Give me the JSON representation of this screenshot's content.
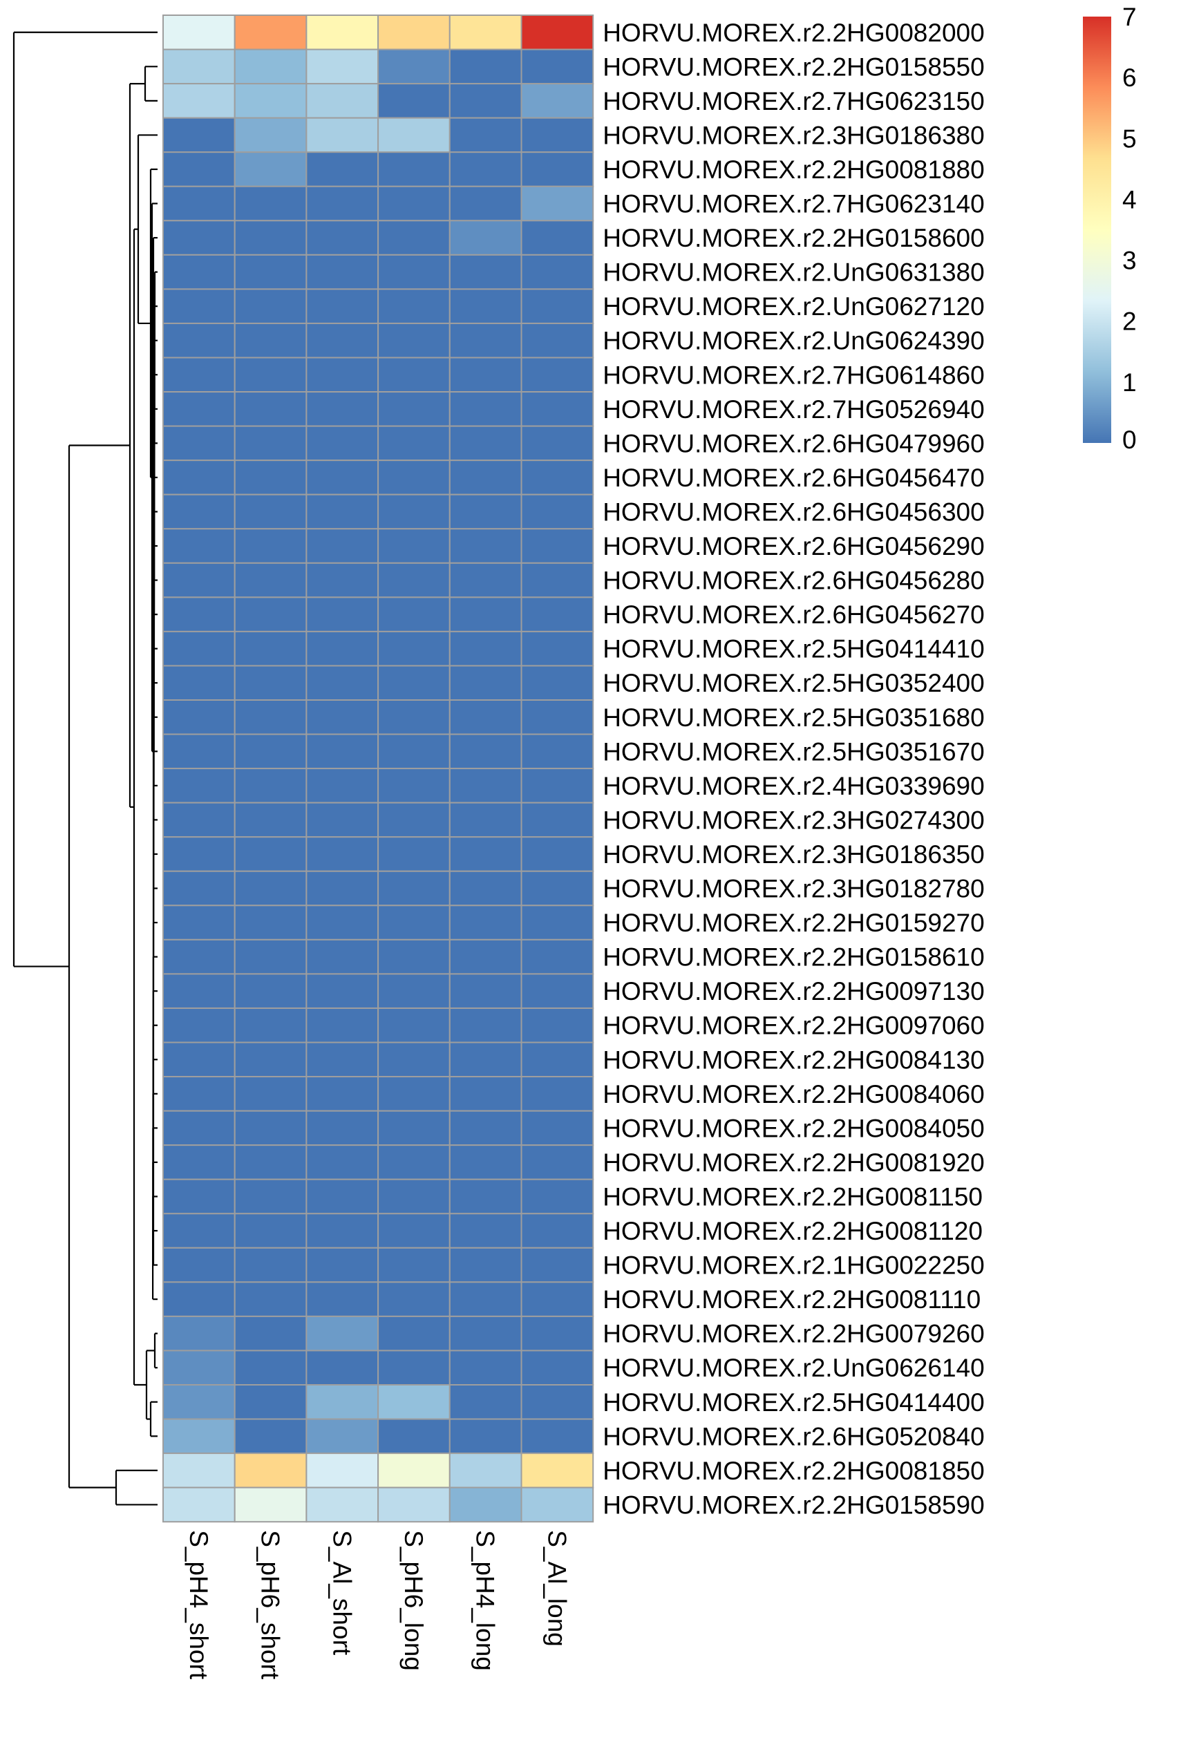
{
  "chart_data": {
    "type": "heatmap",
    "columns": [
      "S_pH4_short",
      "S_pH6_short",
      "S_Al_short",
      "S_pH6_long",
      "S_pH4_long",
      "S_Al_long"
    ],
    "rows": [
      "HORVU.MOREX.r2.2HG0082000",
      "HORVU.MOREX.r2.2HG0158550",
      "HORVU.MOREX.r2.7HG0623150",
      "HORVU.MOREX.r2.3HG0186380",
      "HORVU.MOREX.r2.2HG0081880",
      "HORVU.MOREX.r2.7HG0623140",
      "HORVU.MOREX.r2.2HG0158600",
      "HORVU.MOREX.r2.UnG0631380",
      "HORVU.MOREX.r2.UnG0627120",
      "HORVU.MOREX.r2.UnG0624390",
      "HORVU.MOREX.r2.7HG0614860",
      "HORVU.MOREX.r2.7HG0526940",
      "HORVU.MOREX.r2.6HG0479960",
      "HORVU.MOREX.r2.6HG0456470",
      "HORVU.MOREX.r2.6HG0456300",
      "HORVU.MOREX.r2.6HG0456290",
      "HORVU.MOREX.r2.6HG0456280",
      "HORVU.MOREX.r2.6HG0456270",
      "HORVU.MOREX.r2.5HG0414410",
      "HORVU.MOREX.r2.5HG0352400",
      "HORVU.MOREX.r2.5HG0351680",
      "HORVU.MOREX.r2.5HG0351670",
      "HORVU.MOREX.r2.4HG0339690",
      "HORVU.MOREX.r2.3HG0274300",
      "HORVU.MOREX.r2.3HG0186350",
      "HORVU.MOREX.r2.3HG0182780",
      "HORVU.MOREX.r2.2HG0159270",
      "HORVU.MOREX.r2.2HG0158610",
      "HORVU.MOREX.r2.2HG0097130",
      "HORVU.MOREX.r2.2HG0097060",
      "HORVU.MOREX.r2.2HG0084130",
      "HORVU.MOREX.r2.2HG0084060",
      "HORVU.MOREX.r2.2HG0084050",
      "HORVU.MOREX.r2.2HG0081920",
      "HORVU.MOREX.r2.2HG0081150",
      "HORVU.MOREX.r2.2HG0081120",
      "HORVU.MOREX.r2.1HG0022250",
      "HORVU.MOREX.r2.2HG0081110",
      "HORVU.MOREX.r2.2HG0079260",
      "HORVU.MOREX.r2.UnG0626140",
      "HORVU.MOREX.r2.5HG0414400",
      "HORVU.MOREX.r2.6HG0520840",
      "HORVU.MOREX.r2.2HG0081850",
      "HORVU.MOREX.r2.2HG0158590"
    ],
    "values": [
      [
        2.4,
        5.6,
        3.8,
        4.8,
        4.5,
        7.0
      ],
      [
        1.5,
        1.1,
        1.7,
        0.3,
        0.0,
        0.0
      ],
      [
        1.6,
        1.2,
        1.5,
        0.0,
        0.0,
        0.7
      ],
      [
        0.0,
        0.9,
        1.5,
        1.5,
        0.0,
        0.0
      ],
      [
        0.0,
        0.6,
        0.0,
        0.0,
        0.0,
        0.0
      ],
      [
        0.0,
        0.0,
        0.0,
        0.0,
        0.0,
        0.7
      ],
      [
        0.0,
        0.0,
        0.0,
        0.0,
        0.4,
        0.0
      ],
      [
        0.0,
        0.0,
        0.0,
        0.0,
        0.0,
        0.0
      ],
      [
        0.0,
        0.0,
        0.0,
        0.0,
        0.0,
        0.0
      ],
      [
        0.0,
        0.0,
        0.0,
        0.0,
        0.0,
        0.0
      ],
      [
        0.0,
        0.0,
        0.0,
        0.0,
        0.0,
        0.0
      ],
      [
        0.0,
        0.0,
        0.0,
        0.0,
        0.0,
        0.0
      ],
      [
        0.0,
        0.0,
        0.0,
        0.0,
        0.0,
        0.0
      ],
      [
        0.0,
        0.0,
        0.0,
        0.0,
        0.0,
        0.0
      ],
      [
        0.0,
        0.0,
        0.0,
        0.0,
        0.0,
        0.0
      ],
      [
        0.0,
        0.0,
        0.0,
        0.0,
        0.0,
        0.0
      ],
      [
        0.0,
        0.0,
        0.0,
        0.0,
        0.0,
        0.0
      ],
      [
        0.0,
        0.0,
        0.0,
        0.0,
        0.0,
        0.0
      ],
      [
        0.0,
        0.0,
        0.0,
        0.0,
        0.0,
        0.0
      ],
      [
        0.0,
        0.0,
        0.0,
        0.0,
        0.0,
        0.0
      ],
      [
        0.0,
        0.0,
        0.0,
        0.0,
        0.0,
        0.0
      ],
      [
        0.0,
        0.0,
        0.0,
        0.0,
        0.0,
        0.0
      ],
      [
        0.0,
        0.0,
        0.0,
        0.0,
        0.0,
        0.0
      ],
      [
        0.0,
        0.0,
        0.0,
        0.0,
        0.0,
        0.0
      ],
      [
        0.0,
        0.0,
        0.0,
        0.0,
        0.0,
        0.0
      ],
      [
        0.0,
        0.0,
        0.0,
        0.0,
        0.0,
        0.0
      ],
      [
        0.0,
        0.0,
        0.0,
        0.0,
        0.0,
        0.0
      ],
      [
        0.0,
        0.0,
        0.0,
        0.0,
        0.0,
        0.0
      ],
      [
        0.0,
        0.0,
        0.0,
        0.0,
        0.0,
        0.0
      ],
      [
        0.0,
        0.0,
        0.0,
        0.0,
        0.0,
        0.0
      ],
      [
        0.0,
        0.0,
        0.0,
        0.0,
        0.0,
        0.0
      ],
      [
        0.0,
        0.0,
        0.0,
        0.0,
        0.0,
        0.0
      ],
      [
        0.0,
        0.0,
        0.0,
        0.0,
        0.0,
        0.0
      ],
      [
        0.0,
        0.0,
        0.0,
        0.0,
        0.0,
        0.0
      ],
      [
        0.0,
        0.0,
        0.0,
        0.0,
        0.0,
        0.0
      ],
      [
        0.0,
        0.0,
        0.0,
        0.0,
        0.0,
        0.0
      ],
      [
        0.0,
        0.0,
        0.0,
        0.0,
        0.0,
        0.0
      ],
      [
        0.0,
        0.0,
        0.0,
        0.0,
        0.0,
        0.0
      ],
      [
        0.3,
        0.0,
        0.6,
        0.0,
        0.0,
        0.0
      ],
      [
        0.4,
        0.0,
        0.0,
        0.0,
        0.0,
        0.0
      ],
      [
        0.5,
        0.0,
        1.0,
        1.2,
        0.0,
        0.0
      ],
      [
        0.9,
        0.0,
        0.6,
        0.0,
        0.0,
        0.0
      ],
      [
        1.9,
        4.8,
        2.2,
        3.0,
        1.6,
        4.5
      ],
      [
        1.9,
        2.6,
        1.9,
        1.8,
        1.0,
        1.4
      ]
    ],
    "scale": {
      "min": 0,
      "max": 7,
      "ticks": [
        0,
        1,
        2,
        3,
        4,
        5,
        6,
        7
      ],
      "colors": [
        "#4575b4",
        "#91bfdb",
        "#e0f3f8",
        "#ffffbf",
        "#fee090",
        "#fc8d59",
        "#d73027"
      ]
    },
    "row_dendrogram": true,
    "column_dendrogram": false,
    "cell_border_color": "#9e9e9e"
  }
}
